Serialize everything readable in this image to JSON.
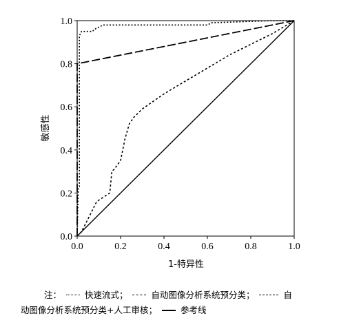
{
  "chart_data": {
    "type": "line",
    "xlabel": "1-特异性",
    "ylabel": "敏感性",
    "xlim": [
      0,
      1
    ],
    "ylim": [
      0,
      1
    ],
    "xticks": [
      "0.0",
      "0.2",
      "0.4",
      "0.6",
      "0.8",
      "1.0"
    ],
    "yticks": [
      "0.0",
      "0.2",
      "0.4",
      "0.6",
      "0.8",
      "1.0"
    ],
    "grid": false,
    "series": [
      {
        "name": "快速流式",
        "style": "dotted",
        "x": [
          0,
          0.005,
          0.01,
          0.01,
          0.02,
          0.07,
          0.08,
          0.08,
          0.1,
          0.12,
          0.6,
          0.62,
          0.9,
          1.0
        ],
        "y": [
          0,
          0.22,
          0.23,
          0.93,
          0.95,
          0.95,
          0.96,
          0.96,
          0.97,
          0.98,
          0.98,
          0.99,
          1.0,
          1.0
        ]
      },
      {
        "name": "自动图像分析系统预分类",
        "style": "short-dash",
        "x": [
          0,
          0.02,
          0.05,
          0.08,
          0.09,
          0.12,
          0.15,
          0.16,
          0.17,
          0.2,
          0.22,
          0.24,
          0.26,
          0.3,
          0.4,
          0.5,
          0.6,
          0.7,
          0.8,
          0.9,
          1.0
        ],
        "y": [
          0,
          0.02,
          0.08,
          0.14,
          0.16,
          0.18,
          0.2,
          0.3,
          0.31,
          0.35,
          0.45,
          0.52,
          0.55,
          0.59,
          0.66,
          0.72,
          0.78,
          0.84,
          0.89,
          0.94,
          1.0
        ]
      },
      {
        "name": "自动图像分析系统预分类+人工审核",
        "style": "long-dash",
        "x": [
          0,
          0.0,
          1.0
        ],
        "y": [
          0,
          0.8,
          1.0
        ]
      },
      {
        "name": "参考线",
        "style": "solid",
        "x": [
          0,
          1
        ],
        "y": [
          0,
          1
        ]
      }
    ]
  },
  "note": {
    "prefix": "注：",
    "line1_items": [
      "快速流式；",
      "自动图像分析系统预分类；",
      "自"
    ],
    "line2_items": [
      "动图像分析系统预分类+人工审核；",
      "参考线"
    ]
  }
}
